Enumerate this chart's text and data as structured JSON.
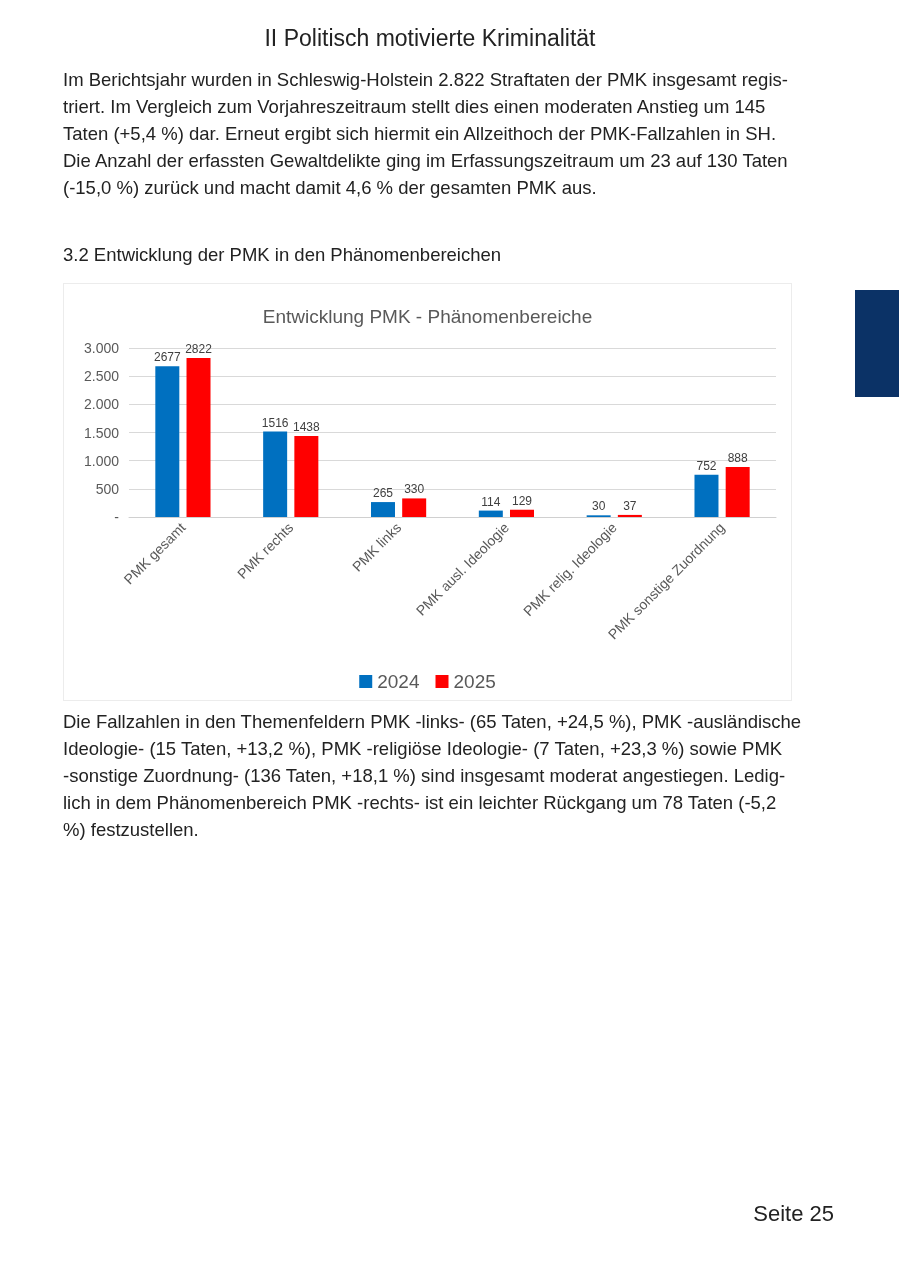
{
  "chart_data": {
    "type": "bar",
    "title": "Entwicklung PMK - Phänomenbereiche",
    "categories": [
      "PMK gesamt",
      "PMK rechts",
      "PMK links",
      "PMK ausl. Ideologie",
      "PMK relig. Ideologie",
      "PMK sonstige Zuordnung"
    ],
    "series": [
      {
        "name": "2024",
        "color": "#0070c0",
        "values": [
          2677,
          1516,
          265,
          114,
          30,
          752
        ]
      },
      {
        "name": "2025",
        "color": "#ff0000",
        "values": [
          2822,
          1438,
          330,
          129,
          37,
          888
        ]
      }
    ],
    "ylim": [
      0,
      3000
    ],
    "yticks": [
      {
        "value": 0,
        "label": "-"
      },
      500,
      {
        "value": 1000,
        "label": "1.000"
      },
      {
        "value": 1500,
        "label": "1.500"
      },
      {
        "value": 2000,
        "label": "2.000"
      },
      {
        "value": 2500,
        "label": "2.500"
      },
      {
        "value": 3000,
        "label": "3.000"
      }
    ],
    "grid": "y",
    "legend": "bottom",
    "data_labels": true,
    "annotations": [
      "II Politisch motivierte Kriminalität",
      "Im Berichtsjahr wurden in Schleswig-Holstein 2.822 Straftaten der PMK insgesamt regis-\ntriert. Im Vergleich zum Vorjahreszeitraum stellt dies einen moderaten Anstieg um 145\nTaten (+5,4 %) dar. Erneut ergibt sich hiermit ein Allzeithoch der PMK-Fallzahlen in SH.\nDie Anzahl der erfassten Gewaltdelikte ging im Erfassungszeitraum um 23 auf 130 Taten\n(-15,0 %) zurück und macht damit 4,6 % der gesamten PMK aus.",
      "3.2 Entwicklung der PMK in den Phänomenbereichen",
      "Die Fallzahlen in den Themenfeldern PMK -links- (65 Taten, +24,5 %), PMK -ausländische\nIdeologie- (15 Taten, +13,2 %), PMK -religiöse Ideologie- (7 Taten, +23,3 %) sowie PMK\n-sonstige Zuordnung- (136 Taten, +18,1 %) sind insgesamt moderat angestiegen. Ledig-\nlich in dem Phänomenbereich PMK -rechts- ist ein leichter Rückgang um 78 Taten (-5,2\n%) festzustellen.",
      "Seite 25"
    ]
  }
}
